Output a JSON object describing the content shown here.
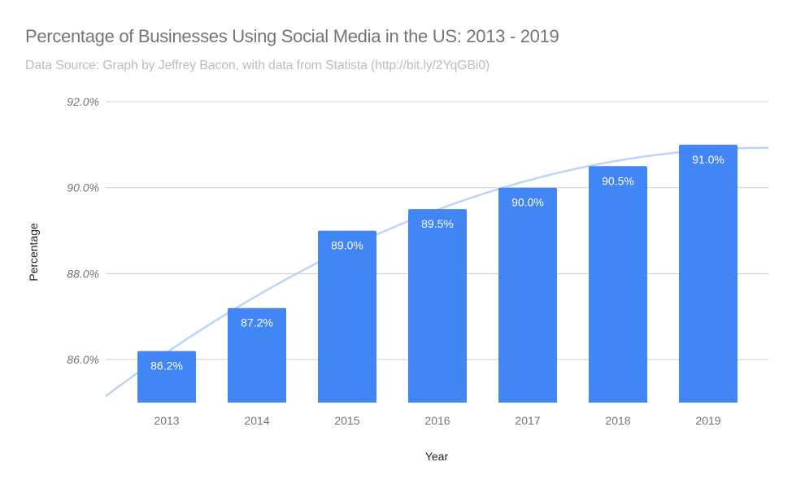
{
  "chart_data": {
    "type": "bar",
    "title": "Percentage of Businesses Using Social Media in the US: 2013 - 2019",
    "subtitle": "Data Source: Graph by Jeffrey Bacon, with data from Statista (http://bit.ly/2YqGBi0)",
    "xlabel": "Year",
    "ylabel": "Percentage",
    "categories": [
      "2013",
      "2014",
      "2015",
      "2016",
      "2017",
      "2018",
      "2019"
    ],
    "values": [
      86.2,
      87.2,
      89.0,
      89.5,
      90.0,
      90.5,
      91.0
    ],
    "data_labels": [
      "86.2%",
      "87.2%",
      "89.0%",
      "89.5%",
      "90.0%",
      "90.5%",
      "91.0%"
    ],
    "yticks": [
      86,
      88,
      90,
      92
    ],
    "ytick_labels": [
      "86.0%",
      "88.0%",
      "90.0%",
      "92.0%"
    ],
    "ylim": [
      85,
      92
    ],
    "grid": true,
    "trendline": "polynomial",
    "colors": {
      "bar": "#4285f4",
      "trendline": "#bcd4fb",
      "grid": "#cccccc"
    }
  }
}
